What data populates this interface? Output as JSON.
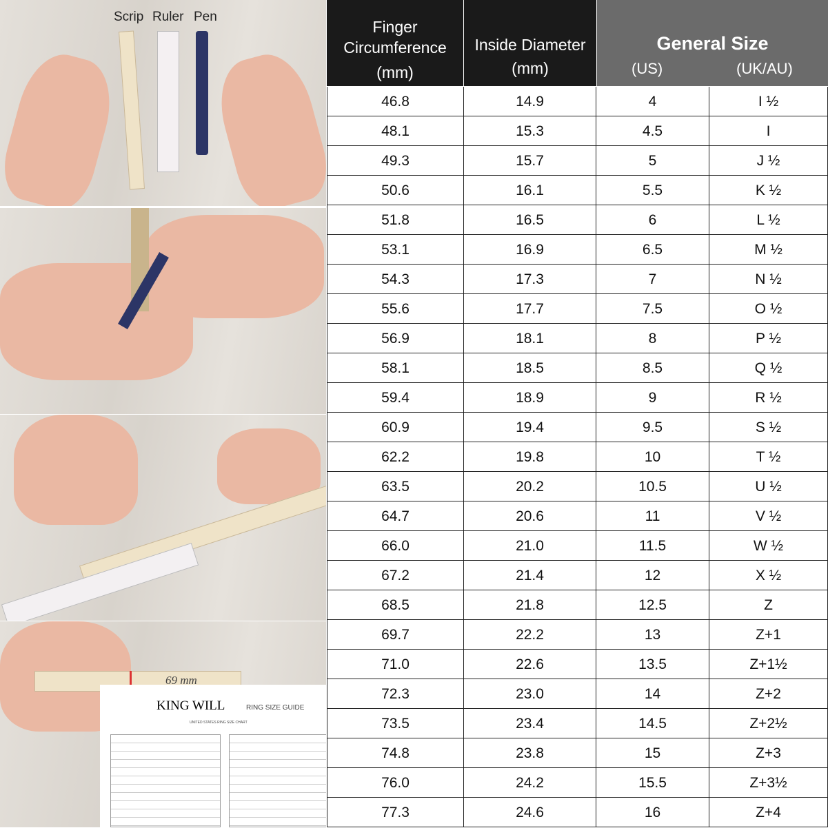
{
  "illustrations": {
    "tools": [
      "Scrip",
      "Ruler",
      "Pen"
    ],
    "brand": "KING WILL",
    "measure": "69 mm",
    "guide_title": "RING SIZE GUIDE",
    "guide_subtitle": "UNITED STATES RING SIZE CHART"
  },
  "table": {
    "headers": {
      "circumference": "Finger Circumference",
      "circumference_unit": "(mm)",
      "diameter": "Inside Diameter",
      "diameter_unit": "(mm)",
      "general": "General Size",
      "us": "(US)",
      "uk": "(UK/AU)"
    },
    "rows": [
      [
        "46.8",
        "14.9",
        "4",
        "I ½"
      ],
      [
        "48.1",
        "15.3",
        "4.5",
        "I"
      ],
      [
        "49.3",
        "15.7",
        "5",
        "J ½"
      ],
      [
        "50.6",
        "16.1",
        "5.5",
        "K ½"
      ],
      [
        "51.8",
        "16.5",
        "6",
        "L ½"
      ],
      [
        "53.1",
        "16.9",
        "6.5",
        "M ½"
      ],
      [
        "54.3",
        "17.3",
        "7",
        "N ½"
      ],
      [
        "55.6",
        "17.7",
        "7.5",
        "O ½"
      ],
      [
        "56.9",
        "18.1",
        "8",
        "P ½"
      ],
      [
        "58.1",
        "18.5",
        "8.5",
        "Q ½"
      ],
      [
        "59.4",
        "18.9",
        "9",
        "R ½"
      ],
      [
        "60.9",
        "19.4",
        "9.5",
        "S ½"
      ],
      [
        "62.2",
        "19.8",
        "10",
        "T ½"
      ],
      [
        "63.5",
        "20.2",
        "10.5",
        "U ½"
      ],
      [
        "64.7",
        "20.6",
        "11",
        "V ½"
      ],
      [
        "66.0",
        "21.0",
        "11.5",
        "W ½"
      ],
      [
        "67.2",
        "21.4",
        "12",
        "X ½"
      ],
      [
        "68.5",
        "21.8",
        "12.5",
        "Z"
      ],
      [
        "69.7",
        "22.2",
        "13",
        "Z+1"
      ],
      [
        "71.0",
        "22.6",
        "13.5",
        "Z+1½"
      ],
      [
        "72.3",
        "23.0",
        "14",
        "Z+2"
      ],
      [
        "73.5",
        "23.4",
        "14.5",
        "Z+2½"
      ],
      [
        "74.8",
        "23.8",
        "15",
        "Z+3"
      ],
      [
        "76.0",
        "24.2",
        "15.5",
        "Z+3½"
      ],
      [
        "77.3",
        "24.6",
        "16",
        "Z+4"
      ]
    ]
  },
  "colors": {
    "header_dark": "#1a1a1a",
    "header_gray": "#6b6b6b",
    "mark": "#d33"
  }
}
